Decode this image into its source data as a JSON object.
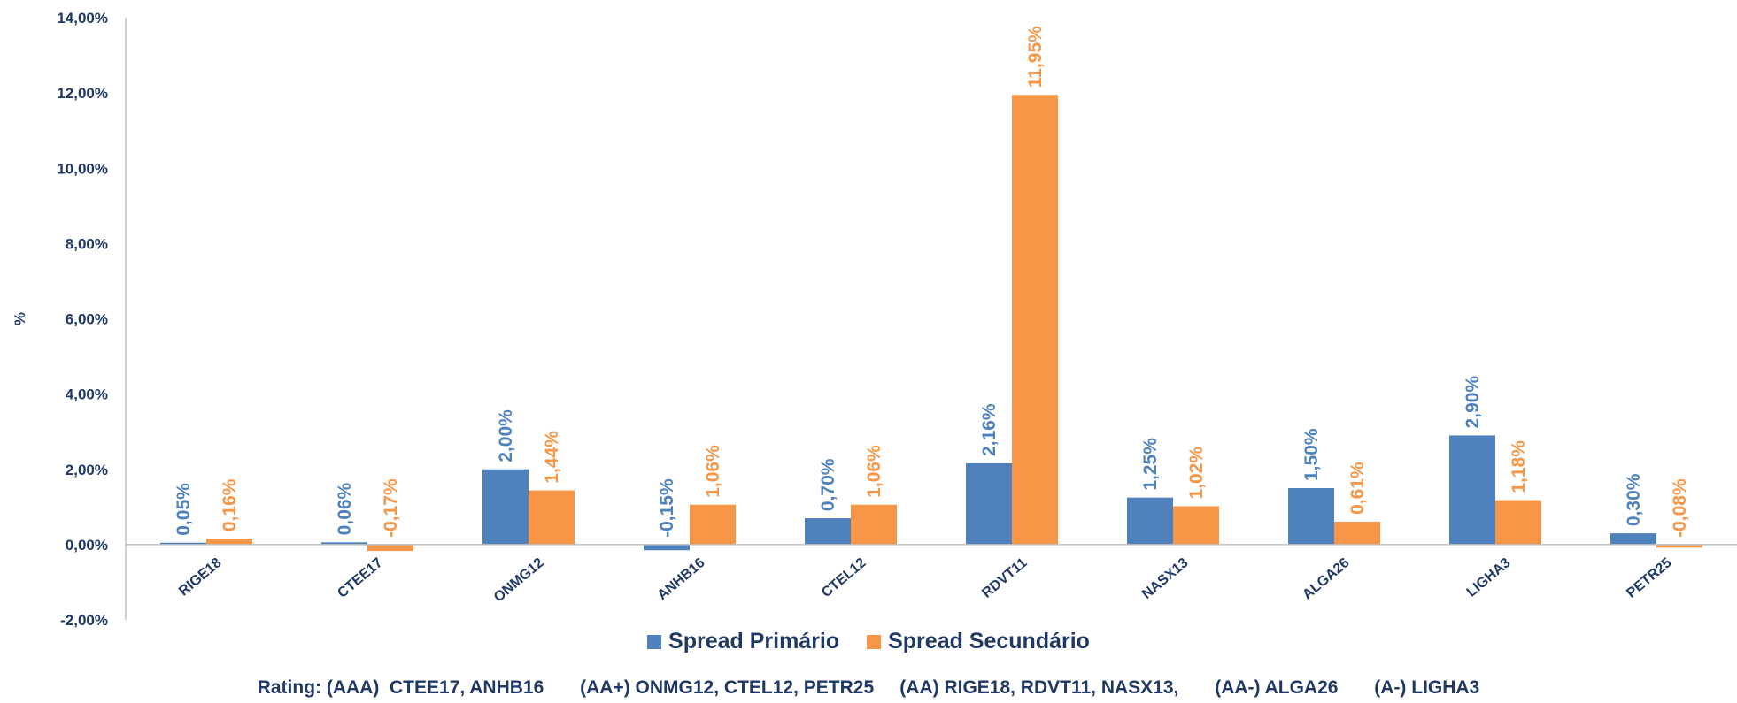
{
  "chart_data": {
    "type": "bar",
    "categories": [
      "RIGE18",
      "CTEE17",
      "ONMG12",
      "ANHB16",
      "CTEL12",
      "RDVT11",
      "NASX13",
      "ALGA26",
      "LIGHA3",
      "PETR25"
    ],
    "series": [
      {
        "name": "Spread Primário",
        "color": "#4f81bd",
        "label_color": "#4f81bd",
        "values": [
          0.05,
          0.06,
          2.0,
          -0.15,
          0.7,
          2.16,
          1.25,
          1.5,
          2.9,
          0.3
        ],
        "labels": [
          "0,05%",
          "0,06%",
          "2,00%",
          "-0,15%",
          "0,70%",
          "2,16%",
          "1,25%",
          "1,50%",
          "2,90%",
          "0,30%"
        ]
      },
      {
        "name": "Spread Secundário",
        "color": "#f79646",
        "label_color": "#f79646",
        "values": [
          0.16,
          -0.17,
          1.44,
          1.06,
          1.06,
          11.95,
          1.02,
          0.61,
          1.18,
          -0.08
        ],
        "labels": [
          "0,16%",
          "-0,17%",
          "1,44%",
          "1,06%",
          "1,06%",
          "11,95%",
          "1,02%",
          "0,61%",
          "1,18%",
          "-0,08%"
        ]
      }
    ],
    "ylabel": "%",
    "ylim": [
      -2,
      14
    ],
    "yticks": [
      -2,
      0,
      2,
      4,
      6,
      8,
      10,
      12,
      14
    ],
    "ytick_labels": [
      "-2,00%",
      "0,00%",
      "2,00%",
      "4,00%",
      "6,00%",
      "8,00%",
      "10,00%",
      "12,00%",
      "14,00%"
    ],
    "grid": false,
    "legend_position": "bottom"
  },
  "legend": {
    "primary_label": "Spread Primário",
    "secondary_label": "Spread Secundário"
  },
  "footer": {
    "rating_text": "Rating: (AAA)  CTEE17, ANHB16       (AA+) ONMG12, CTEL12, PETR25     (AA) RIGE18, RDVT11, NASX13,       (AA-) ALGA26       (A-) LIGHA3"
  },
  "colors": {
    "axis_text": "#1f3864",
    "axis_line": "#bfbfbf"
  }
}
